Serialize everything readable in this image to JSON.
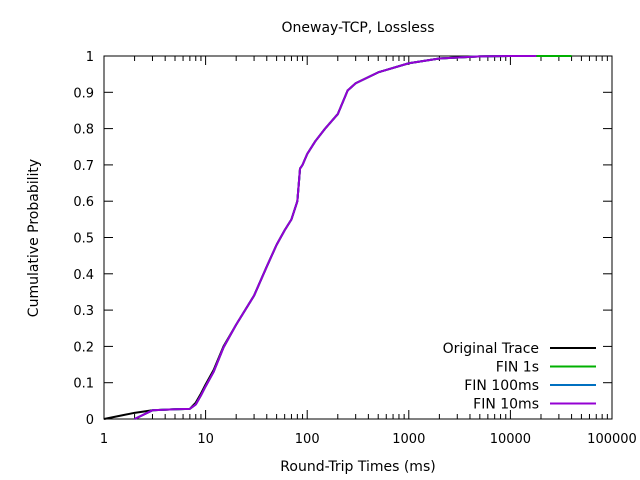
{
  "chart_data": {
    "type": "line",
    "title": "Oneway-TCP, Lossless",
    "xlabel": "Round-Trip Times (ms)",
    "ylabel": "Cumulative Probability",
    "xscale": "log",
    "xlim": [
      1,
      100000
    ],
    "ylim": [
      0,
      1
    ],
    "xticks": [
      1,
      10,
      100,
      1000,
      10000,
      100000
    ],
    "xtick_labels": [
      "1",
      "10",
      "100",
      "1000",
      "10000",
      "100000"
    ],
    "yticks": [
      0,
      0.1,
      0.2,
      0.3,
      0.4,
      0.5,
      0.6,
      0.7,
      0.8,
      0.9,
      1
    ],
    "ytick_labels": [
      "0",
      "0.1",
      "0.2",
      "0.3",
      "0.4",
      "0.5",
      "0.6",
      "0.7",
      "0.8",
      "0.9",
      "1"
    ],
    "grid": false,
    "legend_position": "bottom-right",
    "series": [
      {
        "name": "Original Trace",
        "color": "#000000",
        "x": [
          1,
          1.5,
          2,
          3,
          5,
          7,
          8,
          9,
          10,
          12,
          15,
          20,
          30,
          40,
          50,
          60,
          70,
          80,
          85,
          90,
          100,
          120,
          150,
          200,
          250,
          300,
          500,
          1000,
          2000,
          5000,
          10000,
          20000
        ],
        "y": [
          0,
          0.01,
          0.017,
          0.024,
          0.027,
          0.028,
          0.045,
          0.07,
          0.095,
          0.135,
          0.2,
          0.26,
          0.34,
          0.42,
          0.48,
          0.52,
          0.55,
          0.6,
          0.69,
          0.7,
          0.73,
          0.765,
          0.8,
          0.84,
          0.905,
          0.925,
          0.955,
          0.98,
          0.993,
          0.999,
          1,
          1
        ]
      },
      {
        "name": "FIN 1s",
        "color": "#00b000",
        "x": [
          2,
          3,
          5,
          7,
          8,
          9,
          10,
          12,
          15,
          20,
          30,
          40,
          50,
          60,
          70,
          80,
          85,
          90,
          100,
          120,
          150,
          200,
          250,
          300,
          500,
          1000,
          2000,
          5000,
          10000,
          20000,
          40000
        ],
        "y": [
          0,
          0.024,
          0.027,
          0.028,
          0.04,
          0.065,
          0.09,
          0.13,
          0.197,
          0.26,
          0.34,
          0.42,
          0.48,
          0.52,
          0.55,
          0.6,
          0.69,
          0.7,
          0.73,
          0.765,
          0.8,
          0.84,
          0.905,
          0.925,
          0.955,
          0.98,
          0.993,
          0.999,
          1,
          1,
          1
        ]
      },
      {
        "name": "FIN 100ms",
        "color": "#0070c0",
        "x": [
          2,
          3,
          5,
          7,
          8,
          9,
          10,
          12,
          15,
          20,
          30,
          40,
          50,
          60,
          70,
          80,
          85,
          90,
          100,
          120,
          150,
          200,
          250,
          300,
          500,
          1000,
          2000,
          5000,
          10000
        ],
        "y": [
          0,
          0.024,
          0.027,
          0.028,
          0.04,
          0.065,
          0.09,
          0.13,
          0.197,
          0.26,
          0.34,
          0.42,
          0.48,
          0.52,
          0.55,
          0.6,
          0.69,
          0.7,
          0.73,
          0.765,
          0.8,
          0.84,
          0.905,
          0.925,
          0.955,
          0.98,
          0.993,
          0.999,
          1
        ]
      },
      {
        "name": "FIN 10ms",
        "color": "#9400d3",
        "x": [
          2,
          3,
          5,
          7,
          8,
          9,
          10,
          12,
          15,
          20,
          30,
          40,
          50,
          60,
          70,
          80,
          85,
          90,
          100,
          120,
          150,
          200,
          250,
          300,
          500,
          1000,
          2000,
          5000,
          10000,
          18000
        ],
        "y": [
          0,
          0.024,
          0.027,
          0.028,
          0.04,
          0.065,
          0.09,
          0.13,
          0.197,
          0.26,
          0.34,
          0.42,
          0.48,
          0.52,
          0.55,
          0.6,
          0.69,
          0.7,
          0.73,
          0.765,
          0.8,
          0.84,
          0.905,
          0.925,
          0.955,
          0.98,
          0.993,
          0.999,
          1,
          1
        ]
      }
    ]
  }
}
